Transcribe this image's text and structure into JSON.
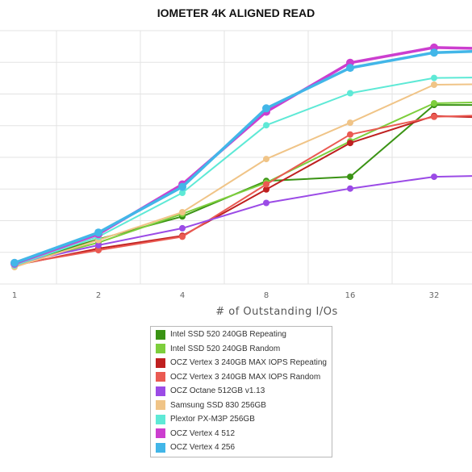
{
  "chart_data": {
    "type": "line",
    "title": "IOMETER 4K ALIGNED READ",
    "xlabel": "# of Outstanding I/Os",
    "ylabel": "",
    "x": [
      1,
      2,
      4,
      8,
      16,
      32,
      64
    ],
    "x_tick_labels": [
      "1",
      "2",
      "4",
      "8",
      "16",
      "32"
    ],
    "x_scale": "log2",
    "ylim": [
      0,
      300
    ],
    "y_tick_labels": [],
    "grid": true,
    "legend_position": "bottom-center",
    "series": [
      {
        "name": "Intel SSD 520 240GB Repeating",
        "color": "#3a9314",
        "values": [
          23,
          53,
          80,
          122,
          127,
          212,
          212
        ]
      },
      {
        "name": "Intel SSD 520 240GB Random",
        "color": "#7dce3c",
        "values": [
          23,
          49,
          83,
          120,
          169,
          214,
          216
        ]
      },
      {
        "name": "OCZ Vertex 3 240GB MAX IOPS Repeating",
        "color": "#bf2020",
        "values": [
          22,
          42,
          57,
          112,
          167,
          199,
          196
        ]
      },
      {
        "name": "OCZ Vertex 3 240GB MAX IOPS Random",
        "color": "#ea5a52",
        "values": [
          23,
          40,
          56,
          118,
          177,
          198,
          201
        ]
      },
      {
        "name": "OCZ Octane 512GB v1.13",
        "color": "#9b4be6",
        "values": [
          24,
          46,
          66,
          96,
          113,
          127,
          129
        ]
      },
      {
        "name": "Samsung SSD 830 256GB",
        "color": "#f0c487",
        "values": [
          20,
          52,
          85,
          148,
          191,
          236,
          237
        ]
      },
      {
        "name": "Plextor PX-M3P 256GB",
        "color": "#5ee9d6",
        "values": [
          22,
          56,
          108,
          188,
          226,
          244,
          245
        ]
      },
      {
        "name": "OCZ Vertex 4 512",
        "color": "#cc3ecf",
        "values": [
          24,
          59,
          118,
          204,
          262,
          280,
          278
        ]
      },
      {
        "name": "OCZ Vertex 4 256",
        "color": "#42b6e8",
        "values": [
          25,
          61,
          115,
          208,
          256,
          274,
          277
        ]
      }
    ]
  }
}
